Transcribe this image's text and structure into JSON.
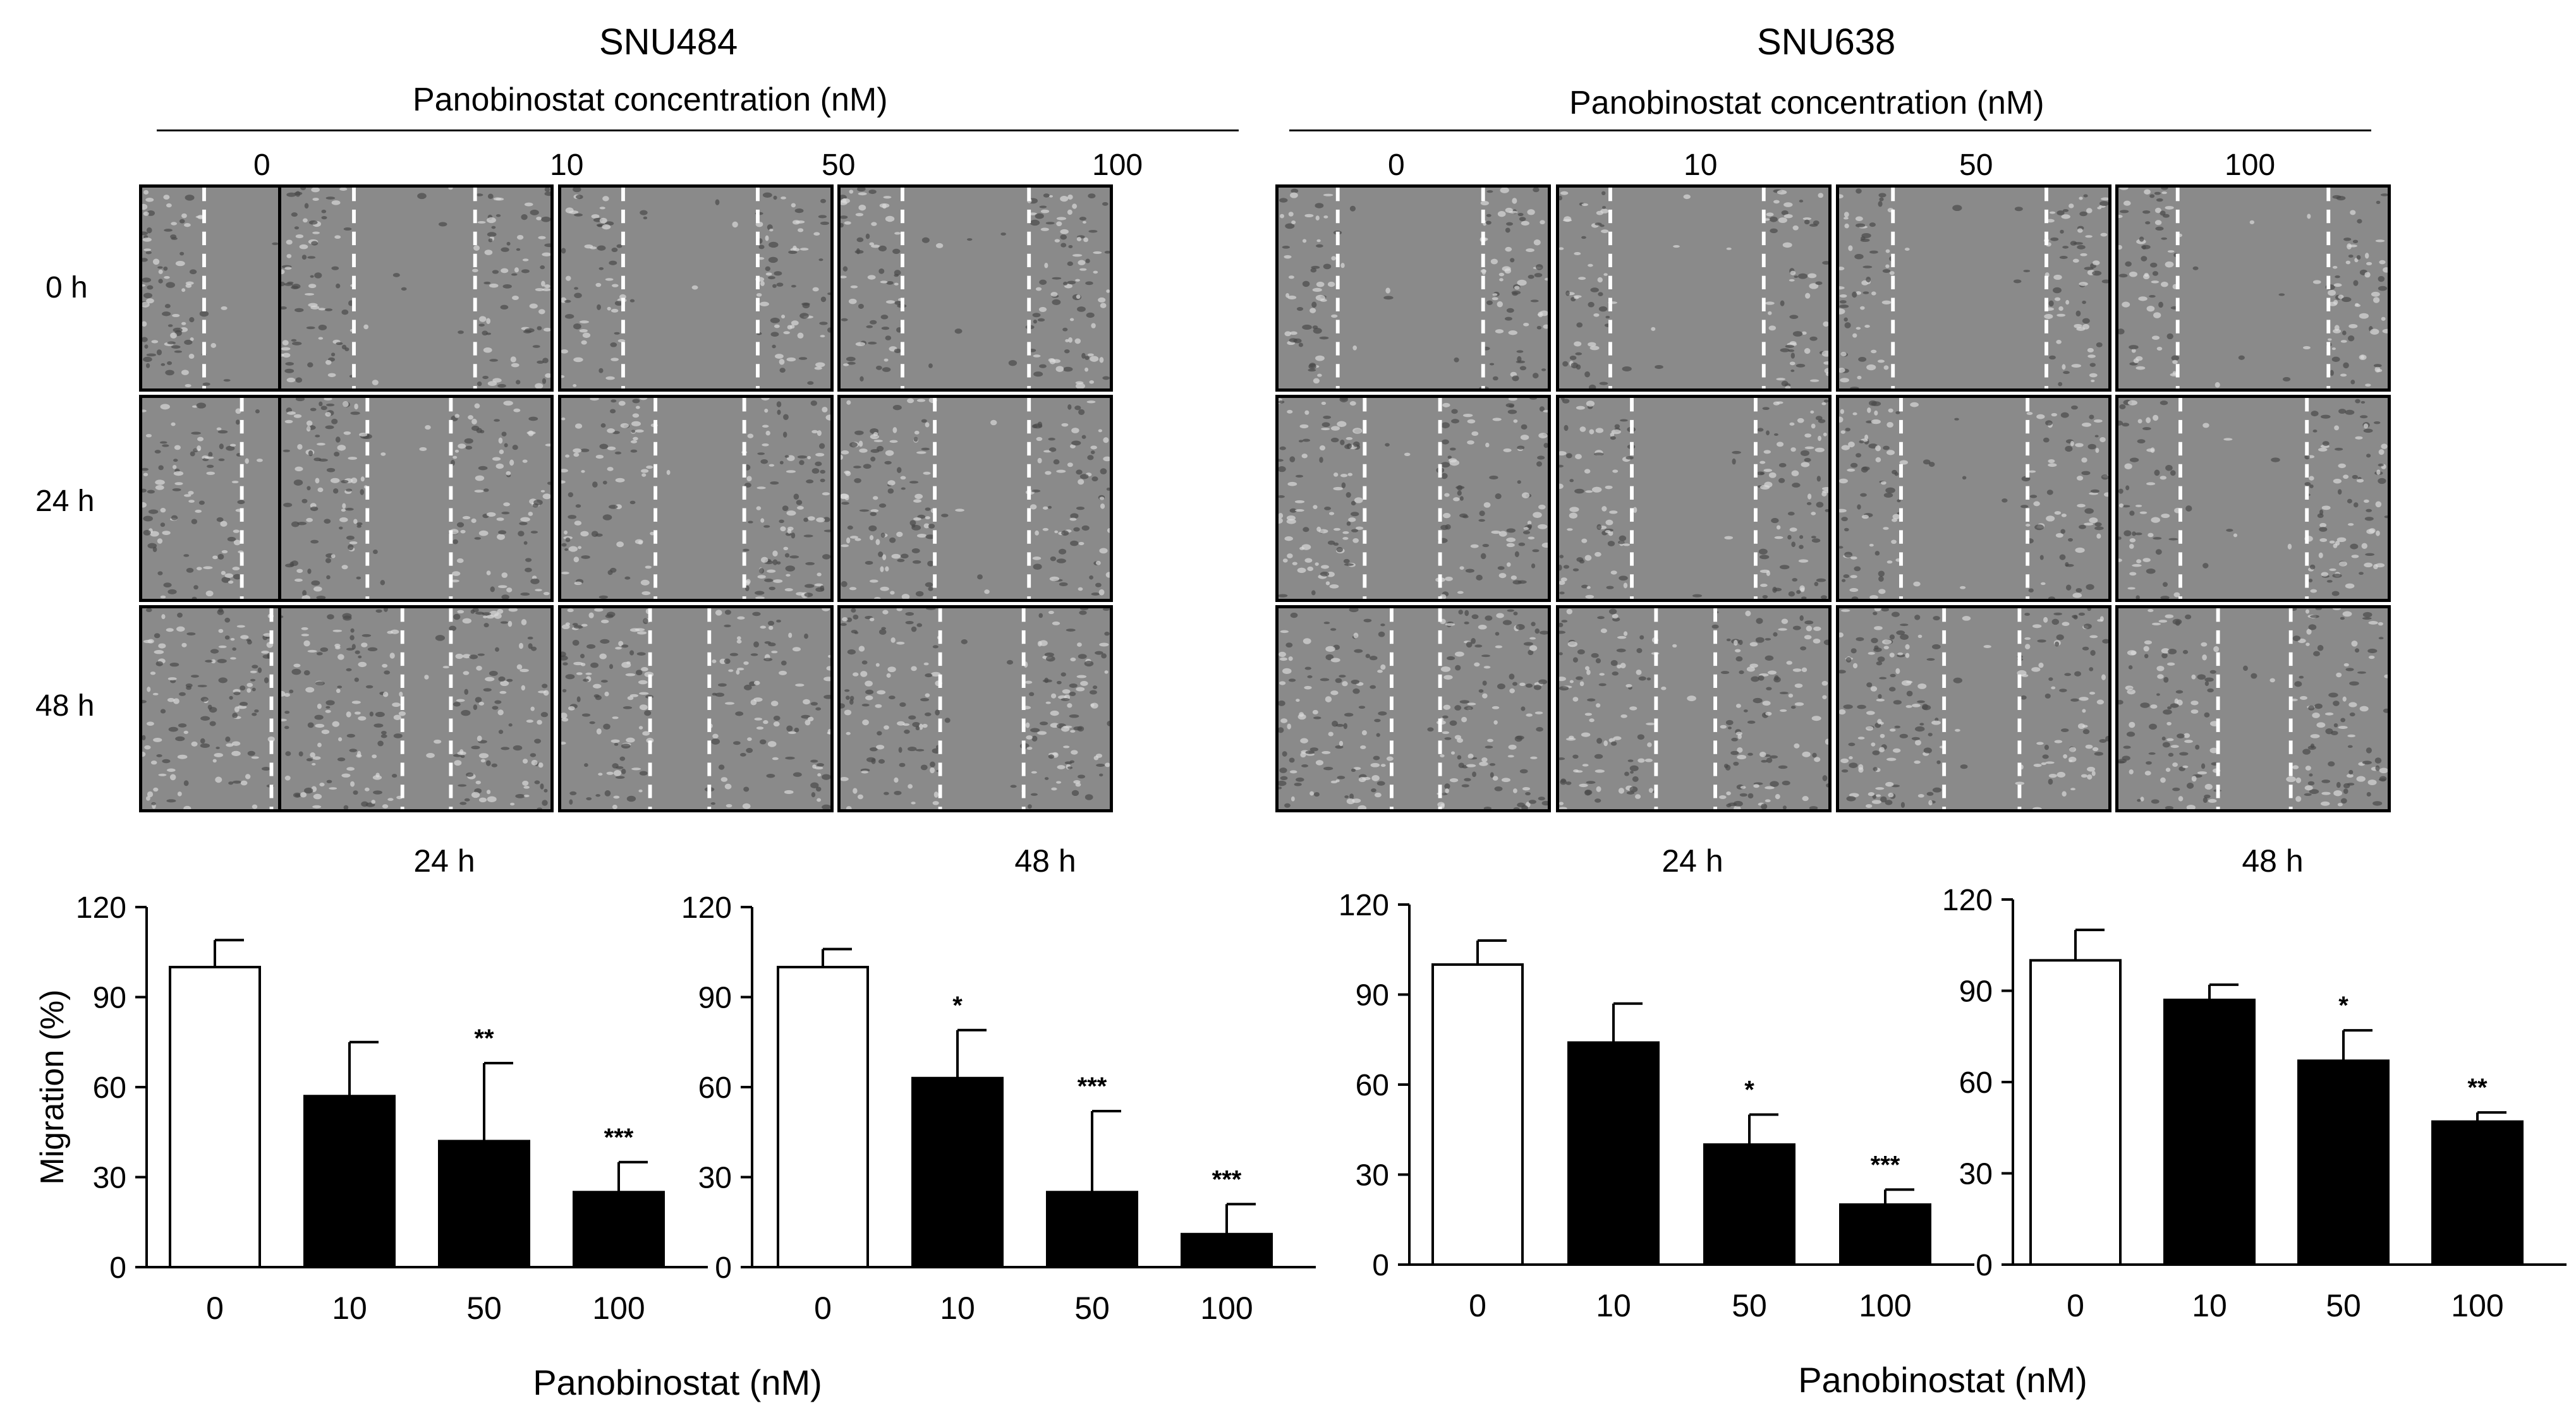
{
  "figure": {
    "panels": [
      {
        "cell_line": "SNU484",
        "header": "Panobinostat concentration (nM)",
        "columns": [
          "0",
          "10",
          "50",
          "100"
        ],
        "rows": [
          "0 h",
          "24 h",
          "48 h"
        ]
      },
      {
        "cell_line": "SNU638",
        "header": "Panobinostat concentration (nM)",
        "columns": [
          "0",
          "10",
          "50",
          "100"
        ],
        "rows": []
      }
    ]
  },
  "chart_data": [
    {
      "type": "bar",
      "cell_line": "SNU484",
      "title": "24 h",
      "ylabel": "Migration (%)",
      "xlabel": "Panobinostat (nM)",
      "categories": [
        "0",
        "10",
        "50",
        "100"
      ],
      "values": [
        100,
        57,
        42,
        25
      ],
      "errors": [
        9,
        18,
        26,
        10
      ],
      "significance": [
        "",
        "",
        "**",
        "***"
      ],
      "ylim": [
        0,
        120
      ],
      "yticks": [
        "0",
        "30",
        "60",
        "90",
        "120"
      ],
      "colors": [
        "#ffffff",
        "#000000",
        "#000000",
        "#000000"
      ]
    },
    {
      "type": "bar",
      "cell_line": "SNU484",
      "title": "48 h",
      "ylabel": "",
      "xlabel": "",
      "categories": [
        "0",
        "10",
        "50",
        "100"
      ],
      "values": [
        100,
        63,
        25,
        11
      ],
      "errors": [
        6,
        16,
        27,
        10
      ],
      "significance": [
        "",
        "*",
        "***",
        "***"
      ],
      "ylim": [
        0,
        120
      ],
      "yticks": [
        "0",
        "30",
        "60",
        "90",
        "120"
      ],
      "colors": [
        "#ffffff",
        "#000000",
        "#000000",
        "#000000"
      ]
    },
    {
      "type": "bar",
      "cell_line": "SNU638",
      "title": "24 h",
      "ylabel": "",
      "xlabel": "Panobinostat (nM)",
      "categories": [
        "0",
        "10",
        "50",
        "100"
      ],
      "values": [
        100,
        74,
        40,
        20
      ],
      "errors": [
        8,
        13,
        10,
        5
      ],
      "significance": [
        "",
        "",
        "*",
        "***"
      ],
      "ylim": [
        0,
        120
      ],
      "yticks": [
        "0",
        "30",
        "60",
        "90",
        "120"
      ],
      "colors": [
        "#ffffff",
        "#000000",
        "#000000",
        "#000000"
      ]
    },
    {
      "type": "bar",
      "cell_line": "SNU638",
      "title": "48 h",
      "ylabel": "",
      "xlabel": "",
      "categories": [
        "0",
        "10",
        "50",
        "100"
      ],
      "values": [
        100,
        87,
        67,
        47
      ],
      "errors": [
        10,
        5,
        10,
        3
      ],
      "significance": [
        "",
        "",
        "*",
        "**"
      ],
      "ylim": [
        0,
        120
      ],
      "yticks": [
        "0",
        "30",
        "60",
        "90",
        "120"
      ],
      "colors": [
        "#ffffff",
        "#000000",
        "#000000",
        "#000000"
      ]
    }
  ]
}
